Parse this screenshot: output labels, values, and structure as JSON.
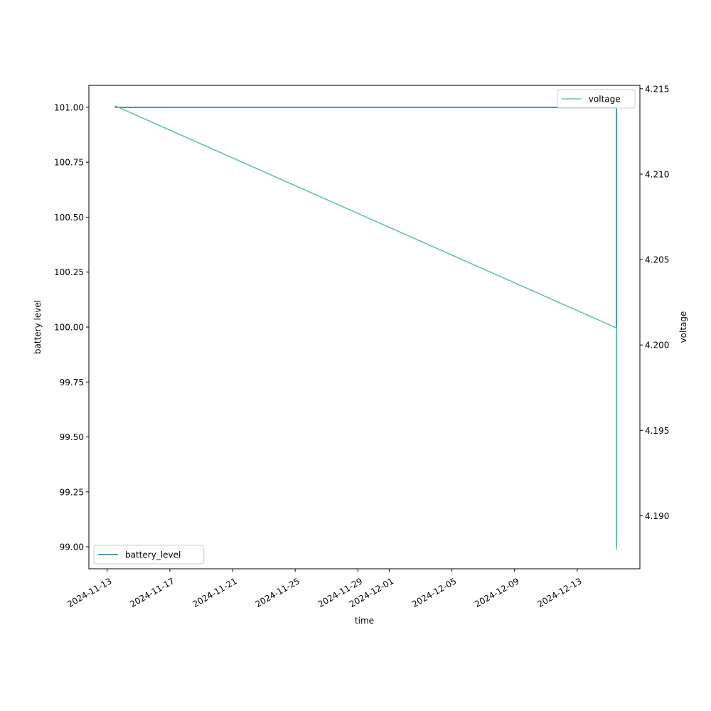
{
  "chart_data": {
    "type": "line",
    "xlabel": "time",
    "ylabel_left": "battery level",
    "ylabel_right": "voltage",
    "x_ticks": [
      "2024-11-13",
      "2024-11-17",
      "2024-11-21",
      "2024-11-25",
      "2024-11-29",
      "2024-12-01",
      "2024-12-05",
      "2024-12-09",
      "2024-12-13"
    ],
    "x_range": [
      "2024-11-11T20:00",
      "2024-12-17T00:00"
    ],
    "left_axis": {
      "ylim": [
        98.9,
        101.1
      ],
      "ticks": [
        "99.00",
        "99.25",
        "99.50",
        "99.75",
        "100.00",
        "100.25",
        "100.50",
        "100.75",
        "101.00"
      ]
    },
    "right_axis": {
      "ylim": [
        4.1869,
        4.2152
      ],
      "ticks": [
        "4.190",
        "4.195",
        "4.200",
        "4.205",
        "4.210",
        "4.215"
      ]
    },
    "grid": false,
    "series": [
      {
        "name": "battery_level",
        "axis": "left",
        "color": "#1f77b4",
        "legend_position": "lower-left",
        "points": [
          {
            "x": "2024-11-13T12:00",
            "y": 101
          },
          {
            "x": "2024-12-15T12:00",
            "y": 101
          },
          {
            "x": "2024-12-15T12:00",
            "y": 99
          }
        ]
      },
      {
        "name": "voltage",
        "axis": "right",
        "color": "#66c2a5",
        "legend_position": "upper-right",
        "points": [
          {
            "x": "2024-11-13T12:00",
            "y": 4.214
          },
          {
            "x": "2024-12-15T12:00",
            "y": 4.201
          },
          {
            "x": "2024-12-15T12:00",
            "y": 4.188
          }
        ]
      }
    ]
  }
}
